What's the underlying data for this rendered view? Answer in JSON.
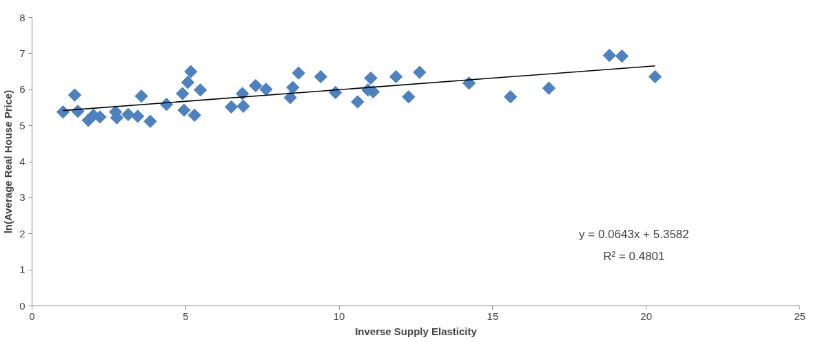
{
  "chart_data": {
    "type": "scatter",
    "xlabel": "Inverse Supply Elasticity",
    "ylabel": "ln(Average Real House Price)",
    "xlim": [
      0,
      25
    ],
    "ylim": [
      0,
      8
    ],
    "xticks": [
      0,
      5,
      10,
      15,
      20,
      25
    ],
    "yticks": [
      0,
      1,
      2,
      3,
      4,
      5,
      6,
      7,
      8
    ],
    "grid": false,
    "annotations": [
      "y = 0.0643x + 5.3582",
      "R² = 0.4801"
    ],
    "series": [
      {
        "marker": "diamond",
        "color": "#4f81bd",
        "x": [
          1.01,
          1.39,
          1.49,
          1.83,
          2.0,
          2.21,
          2.72,
          2.76,
          3.13,
          3.44,
          3.56,
          3.85,
          4.38,
          4.9,
          4.95,
          5.07,
          5.17,
          5.29,
          5.48,
          6.49,
          6.85,
          6.88,
          7.28,
          7.62,
          8.41,
          8.49,
          8.68,
          9.4,
          9.88,
          10.6,
          10.94,
          11.03,
          11.11,
          11.85,
          12.26,
          12.62,
          14.23,
          15.58,
          16.83,
          18.8,
          19.21,
          20.29
        ],
        "values": [
          5.38,
          5.85,
          5.4,
          5.15,
          5.29,
          5.24,
          5.38,
          5.22,
          5.31,
          5.26,
          5.82,
          5.12,
          5.59,
          5.89,
          5.43,
          6.2,
          6.5,
          5.29,
          5.99,
          5.52,
          5.89,
          5.54,
          6.11,
          6.01,
          5.78,
          6.06,
          6.46,
          6.36,
          5.92,
          5.66,
          5.99,
          6.32,
          5.94,
          6.36,
          5.8,
          6.48,
          6.18,
          5.8,
          6.04,
          6.95,
          6.93,
          6.36
        ]
      },
      {
        "type": "line",
        "color": "#000000",
        "x": [
          1.01,
          20.29
        ],
        "values": [
          5.42,
          6.66
        ],
        "marker": "none"
      }
    ]
  }
}
